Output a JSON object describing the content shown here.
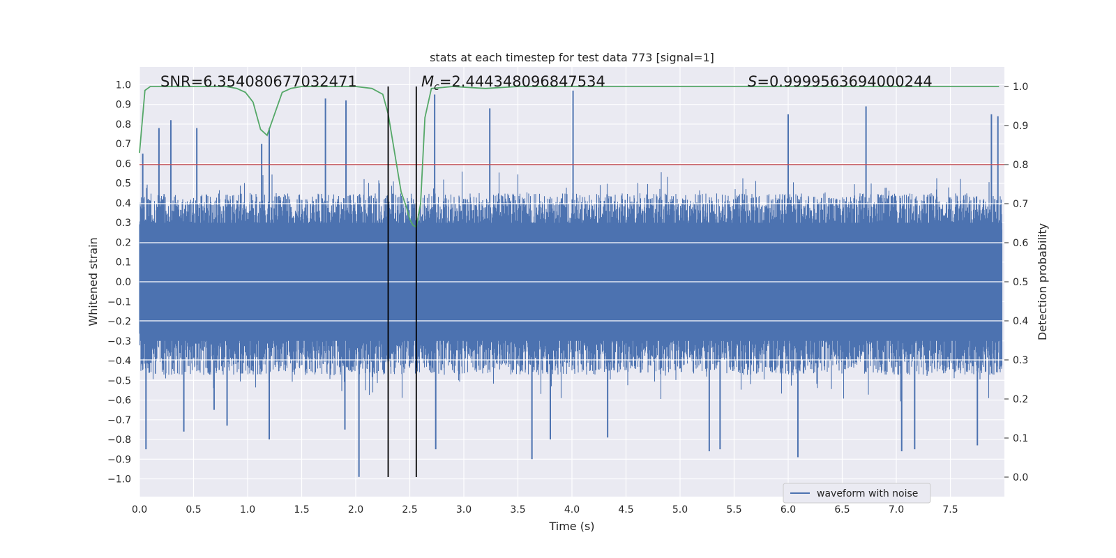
{
  "chart_data": {
    "type": "line",
    "title": "stats at each timestep for test data 773 [signal=1]",
    "xlabel": "Time (s)",
    "ylabel": "Whitened strain",
    "y2label": "Detection probability",
    "xlim": [
      0,
      8
    ],
    "ylim": [
      -1.09,
      1.09
    ],
    "y2lim": [
      -0.05,
      1.05
    ],
    "xticks": [
      "0.0",
      "0.5",
      "1.0",
      "1.5",
      "2.0",
      "2.5",
      "3.0",
      "3.5",
      "4.0",
      "4.5",
      "5.0",
      "5.5",
      "6.0",
      "6.5",
      "7.0",
      "7.5"
    ],
    "yticks": [
      "1.0",
      "0.9",
      "0.8",
      "0.7",
      "0.6",
      "0.5",
      "0.4",
      "0.3",
      "0.2",
      "0.1",
      "0.0",
      "-0.1",
      "-0.2",
      "-0.3",
      "-0.4",
      "-0.5",
      "-0.6",
      "-0.7",
      "-0.8",
      "-0.9",
      "-1.0"
    ],
    "y2ticks": [
      "1.0",
      "0.9",
      "0.8",
      "0.7",
      "0.6",
      "0.5",
      "0.4",
      "0.3",
      "0.2",
      "0.1",
      "0.0"
    ],
    "grid": true,
    "legend": {
      "position": "lower-right",
      "entries": [
        "waveform with noise"
      ]
    },
    "annotations": {
      "snr": "SNR=6.354080677032471",
      "mc_symbol": "M",
      "mc_sub": "c",
      "mc_value": "=2.444348096847534",
      "s_symbol": "S",
      "s_value": "=0.9999563694000244"
    },
    "threshold_line": {
      "y2": 0.8,
      "color": "#c44e52"
    },
    "vertical_lines": [
      2.3,
      2.56
    ],
    "colors": {
      "waveform": "#4c72b0",
      "probability": "#55a868",
      "threshold": "#c44e52",
      "vlines": "#000000",
      "plot_bg": "#eaeaf2"
    },
    "series": [
      {
        "name": "waveform with noise",
        "color": "#4c72b0",
        "envelope": {
          "bulk_amplitude": 0.45,
          "notable_peaks": [
            {
              "t": 0.03,
              "v": 0.65
            },
            {
              "t": 0.06,
              "v": -0.85
            },
            {
              "t": 0.18,
              "v": 0.78
            },
            {
              "t": 0.29,
              "v": 0.82
            },
            {
              "t": 0.41,
              "v": -0.76
            },
            {
              "t": 0.53,
              "v": 0.78
            },
            {
              "t": 0.69,
              "v": -0.65
            },
            {
              "t": 0.81,
              "v": -0.73
            },
            {
              "t": 1.13,
              "v": 0.7
            },
            {
              "t": 1.2,
              "v": -0.8
            },
            {
              "t": 1.2,
              "v": 0.78
            },
            {
              "t": 1.72,
              "v": 0.93
            },
            {
              "t": 1.91,
              "v": 0.92
            },
            {
              "t": 1.9,
              "v": -0.75
            },
            {
              "t": 2.03,
              "v": -0.99
            },
            {
              "t": 2.73,
              "v": 0.95
            },
            {
              "t": 2.74,
              "v": -0.85
            },
            {
              "t": 3.24,
              "v": 0.88
            },
            {
              "t": 3.63,
              "v": -0.9
            },
            {
              "t": 3.8,
              "v": -0.8
            },
            {
              "t": 4.01,
              "v": 0.97
            },
            {
              "t": 4.33,
              "v": -0.79
            },
            {
              "t": 5.27,
              "v": -0.86
            },
            {
              "t": 5.37,
              "v": -0.85
            },
            {
              "t": 6.0,
              "v": 0.85
            },
            {
              "t": 6.09,
              "v": -0.89
            },
            {
              "t": 6.72,
              "v": 0.89
            },
            {
              "t": 7.05,
              "v": -0.86
            },
            {
              "t": 7.17,
              "v": -0.85
            },
            {
              "t": 7.75,
              "v": -0.83
            },
            {
              "t": 7.88,
              "v": 0.85
            },
            {
              "t": 7.94,
              "v": 0.84
            }
          ]
        }
      },
      {
        "name": "",
        "color": "#55a868",
        "axis": "right",
        "x": [
          0.0,
          0.05,
          0.1,
          0.2,
          0.4,
          0.6,
          0.8,
          0.9,
          0.98,
          1.05,
          1.12,
          1.18,
          1.25,
          1.32,
          1.4,
          1.5,
          1.6,
          1.8,
          2.0,
          2.15,
          2.25,
          2.3,
          2.36,
          2.42,
          2.47,
          2.5,
          2.53,
          2.56,
          2.6,
          2.64,
          2.7,
          2.9,
          3.2,
          3.5,
          3.8,
          4.0,
          4.5,
          5.0,
          5.5,
          6.0,
          6.5,
          7.0,
          7.5,
          7.95
        ],
        "y": [
          0.83,
          0.99,
          1.0,
          1.0,
          1.0,
          1.0,
          1.0,
          0.995,
          0.985,
          0.96,
          0.89,
          0.875,
          0.93,
          0.985,
          0.995,
          1.0,
          1.0,
          1.0,
          1.0,
          0.995,
          0.98,
          0.93,
          0.83,
          0.73,
          0.69,
          0.66,
          0.645,
          0.64,
          0.7,
          0.92,
          0.995,
          1.0,
          0.995,
          1.0,
          1.0,
          1.0,
          1.0,
          1.0,
          1.0,
          1.0,
          1.0,
          1.0,
          1.0,
          1.0
        ]
      }
    ]
  }
}
